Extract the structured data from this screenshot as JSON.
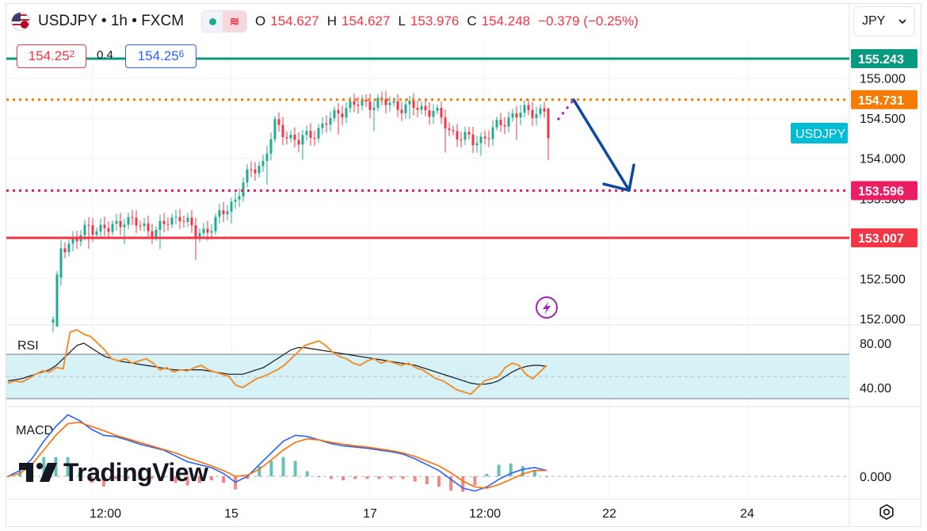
{
  "header": {
    "symbol": "USDJPY",
    "separator1": "•",
    "interval": "1h",
    "separator2": "•",
    "source": "FXCM",
    "ohlc": [
      {
        "label": "O",
        "value": "154.627"
      },
      {
        "label": "H",
        "value": "154.627"
      },
      {
        "label": "L",
        "value": "153.976"
      },
      {
        "label": "C",
        "value": "154.248"
      }
    ],
    "change": "−0.379 (−0.25%)"
  },
  "trade": {
    "sell_price": "154.25",
    "sell_price_small": "2",
    "spread": "0.4",
    "buy_price": "154.25",
    "buy_price_small": "6"
  },
  "currency_selector": {
    "value": "JPY",
    "chevron_icon": "chevron-down-icon"
  },
  "brand": {
    "logo_icon": "tradingview-logo-icon",
    "name": "TradingView"
  },
  "settings_icon": "gear-icon",
  "colors": {
    "up": "#22ab94",
    "down": "#f23645",
    "level_top": "#089981",
    "level_orange": "#f57c00",
    "level_pink": "#e91e63",
    "level_red": "#f23645",
    "arrow": "#0d47a1",
    "rsi_line": "#f09030",
    "rsi_band": "#d6f2f7",
    "macd_line": "#2962ff",
    "signal_line": "#ff6d00",
    "symbol_label": "#00bcd4",
    "alert_icon": "#9c27b0"
  },
  "chart_data": [
    {
      "type": "candlestick",
      "title": "USDJPY • 1h • FXCM",
      "y_axis_ticks": [
        "155.000",
        "154.500",
        "154.000",
        "153.500",
        "152.500",
        "152.000"
      ],
      "x_axis_ticks": [
        "12:00",
        "15",
        "17",
        "12:00",
        "22",
        "24"
      ],
      "ylim": [
        151.95,
        155.5
      ],
      "symbol_label": "USDJPY",
      "horizontal_levels": [
        {
          "value": 155.243,
          "label": "155.243",
          "style": "solid"
        },
        {
          "value": 154.731,
          "label": "154.731",
          "style": "dotted"
        },
        {
          "value": 153.596,
          "label": "153.596",
          "style": "dotted"
        },
        {
          "value": 153.007,
          "label": "153.007",
          "style": "solid"
        }
      ],
      "waypoints": [
        {
          "x": 0,
          "y": 151.95
        },
        {
          "x": 2,
          "y": 152.9
        },
        {
          "x": 6,
          "y": 152.98
        },
        {
          "x": 9,
          "y": 153.15
        },
        {
          "x": 14,
          "y": 153.1
        },
        {
          "x": 18,
          "y": 153.25
        },
        {
          "x": 22,
          "y": 153.15
        },
        {
          "x": 26,
          "y": 153.1
        },
        {
          "x": 32,
          "y": 153.3
        },
        {
          "x": 36,
          "y": 153.05
        },
        {
          "x": 40,
          "y": 153.15
        },
        {
          "x": 46,
          "y": 153.5
        },
        {
          "x": 50,
          "y": 153.85
        },
        {
          "x": 53,
          "y": 153.95
        },
        {
          "x": 56,
          "y": 154.4
        },
        {
          "x": 62,
          "y": 154.2
        },
        {
          "x": 68,
          "y": 154.4
        },
        {
          "x": 74,
          "y": 154.65
        },
        {
          "x": 82,
          "y": 154.7
        },
        {
          "x": 88,
          "y": 154.65
        },
        {
          "x": 96,
          "y": 154.6
        },
        {
          "x": 100,
          "y": 154.35
        },
        {
          "x": 106,
          "y": 154.2
        },
        {
          "x": 110,
          "y": 154.3
        },
        {
          "x": 116,
          "y": 154.55
        },
        {
          "x": 124,
          "y": 154.6
        },
        {
          "x": 125,
          "y": 154.25
        }
      ],
      "projection": [
        {
          "x": 127,
          "y": 154.48
        },
        {
          "x": 131,
          "y": 154.73
        },
        {
          "x": 145,
          "y": 153.6
        }
      ]
    },
    {
      "type": "line",
      "title": "RSI",
      "y_axis_ticks": [
        "80.00",
        "40.00"
      ],
      "ylim": [
        25,
        95
      ],
      "band": [
        30,
        70
      ],
      "series": [
        {
          "values": [
            44,
            46,
            45,
            48,
            52,
            55,
            54,
            58,
            57,
            90,
            92,
            88,
            86,
            80,
            74,
            66,
            64,
            66,
            62,
            64,
            66,
            62,
            56,
            58,
            54,
            56,
            55,
            58,
            60,
            56,
            54,
            52,
            50,
            42,
            40,
            44,
            48,
            50,
            53,
            56,
            60,
            66,
            72,
            78,
            80,
            82,
            78,
            72,
            68,
            66,
            62,
            60,
            64,
            66,
            62,
            64,
            62,
            60,
            62,
            58,
            56,
            52,
            48,
            46,
            42,
            38,
            36,
            34,
            40,
            46,
            48,
            50,
            58,
            62,
            60,
            52,
            48,
            54,
            60
          ]
        },
        {
          "values": [
            46,
            47,
            48,
            50,
            52,
            54,
            56,
            60,
            66,
            72,
            78,
            80,
            76,
            72,
            68,
            66,
            64,
            63,
            62,
            61,
            60,
            59,
            58,
            57,
            56,
            56,
            56,
            56,
            56,
            55,
            54,
            53,
            52,
            52,
            52,
            54,
            56,
            58,
            62,
            66,
            70,
            74,
            76,
            76,
            75,
            74,
            73,
            72,
            71,
            70,
            69,
            68,
            67,
            66,
            65,
            64,
            63,
            62,
            61,
            60,
            58,
            56,
            54,
            52,
            50,
            48,
            46,
            44,
            43,
            43,
            44,
            46,
            50,
            54,
            57,
            59,
            60,
            60,
            59
          ]
        }
      ]
    },
    {
      "type": "line",
      "title": "MACD",
      "y_axis_ticks": [
        "0.000"
      ],
      "ylim": [
        -0.35,
        1.15
      ],
      "series": [
        {
          "values": [
            0.0,
            0.1,
            0.3,
            0.6,
            0.85,
            1.05,
            0.95,
            0.8,
            0.7,
            0.68,
            0.62,
            0.55,
            0.5,
            0.45,
            0.35,
            0.25,
            0.2,
            0.15,
            0.05,
            -0.1,
            0.0,
            0.2,
            0.4,
            0.6,
            0.7,
            0.68,
            0.62,
            0.56,
            0.52,
            0.5,
            0.48,
            0.45,
            0.42,
            0.38,
            0.3,
            0.2,
            0.1,
            -0.05,
            -0.2,
            -0.25,
            -0.18,
            -0.05,
            0.05,
            0.12,
            0.15,
            0.1
          ]
        },
        {
          "values": [
            0.0,
            0.05,
            0.2,
            0.45,
            0.7,
            0.9,
            0.92,
            0.85,
            0.78,
            0.7,
            0.64,
            0.58,
            0.52,
            0.46,
            0.4,
            0.32,
            0.25,
            0.18,
            0.1,
            0.0,
            0.02,
            0.12,
            0.28,
            0.45,
            0.58,
            0.64,
            0.62,
            0.58,
            0.55,
            0.52,
            0.5,
            0.47,
            0.44,
            0.4,
            0.34,
            0.26,
            0.18,
            0.06,
            -0.08,
            -0.18,
            -0.2,
            -0.14,
            -0.05,
            0.04,
            0.1,
            0.1
          ]
        }
      ]
    }
  ]
}
